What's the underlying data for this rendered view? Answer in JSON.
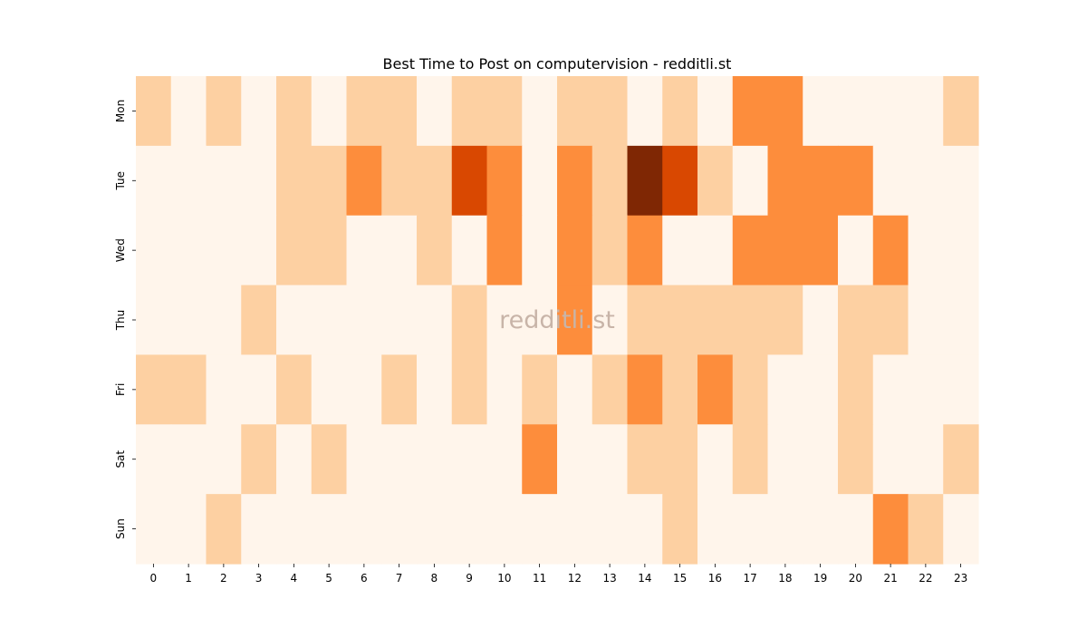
{
  "chart_data": {
    "type": "heatmap",
    "title": "Best Time to Post on computervision - redditli.st",
    "watermark": "redditli.st",
    "xlabel": "",
    "ylabel": "",
    "x": [
      "0",
      "1",
      "2",
      "3",
      "4",
      "5",
      "6",
      "7",
      "8",
      "9",
      "10",
      "11",
      "12",
      "13",
      "14",
      "15",
      "16",
      "17",
      "18",
      "19",
      "20",
      "21",
      "22",
      "23"
    ],
    "y": [
      "Mon",
      "Tue",
      "Wed",
      "Thu",
      "Fri",
      "Sat",
      "Sun"
    ],
    "colormap": "Oranges",
    "vmin": 0,
    "vmax": 4,
    "grid": false,
    "legend": "none",
    "values": [
      [
        1,
        0,
        1,
        0,
        1,
        0,
        1,
        1,
        0,
        1,
        1,
        0,
        1,
        1,
        0,
        1,
        0,
        2,
        2,
        0,
        0,
        0,
        0,
        1
      ],
      [
        0,
        0,
        0,
        0,
        1,
        1,
        2,
        1,
        1,
        3,
        2,
        0,
        2,
        1,
        4,
        3,
        1,
        0,
        2,
        2,
        2,
        0,
        0,
        0
      ],
      [
        0,
        0,
        0,
        0,
        1,
        1,
        0,
        0,
        1,
        0,
        2,
        0,
        2,
        1,
        2,
        0,
        0,
        2,
        2,
        2,
        0,
        2,
        0,
        0
      ],
      [
        0,
        0,
        0,
        1,
        0,
        0,
        0,
        0,
        0,
        1,
        0,
        0,
        2,
        0,
        1,
        1,
        1,
        1,
        1,
        0,
        1,
        1,
        0,
        0
      ],
      [
        1,
        1,
        0,
        0,
        1,
        0,
        0,
        1,
        0,
        1,
        0,
        1,
        0,
        1,
        2,
        1,
        2,
        1,
        0,
        0,
        1,
        0,
        0,
        0
      ],
      [
        0,
        0,
        0,
        1,
        0,
        1,
        0,
        0,
        0,
        0,
        0,
        2,
        0,
        0,
        1,
        1,
        0,
        1,
        0,
        0,
        1,
        0,
        0,
        1
      ],
      [
        0,
        0,
        1,
        0,
        0,
        0,
        0,
        0,
        0,
        0,
        0,
        0,
        0,
        0,
        0,
        1,
        0,
        0,
        0,
        0,
        0,
        2,
        1,
        0
      ]
    ]
  },
  "colors": {
    "level_0": "#fff5eb",
    "level_1": "#fdd0a2",
    "level_2": "#fd8d3c",
    "level_3": "#d94801",
    "level_4": "#7f2704",
    "watermark": "#c8b4a8",
    "text": "#000000"
  }
}
